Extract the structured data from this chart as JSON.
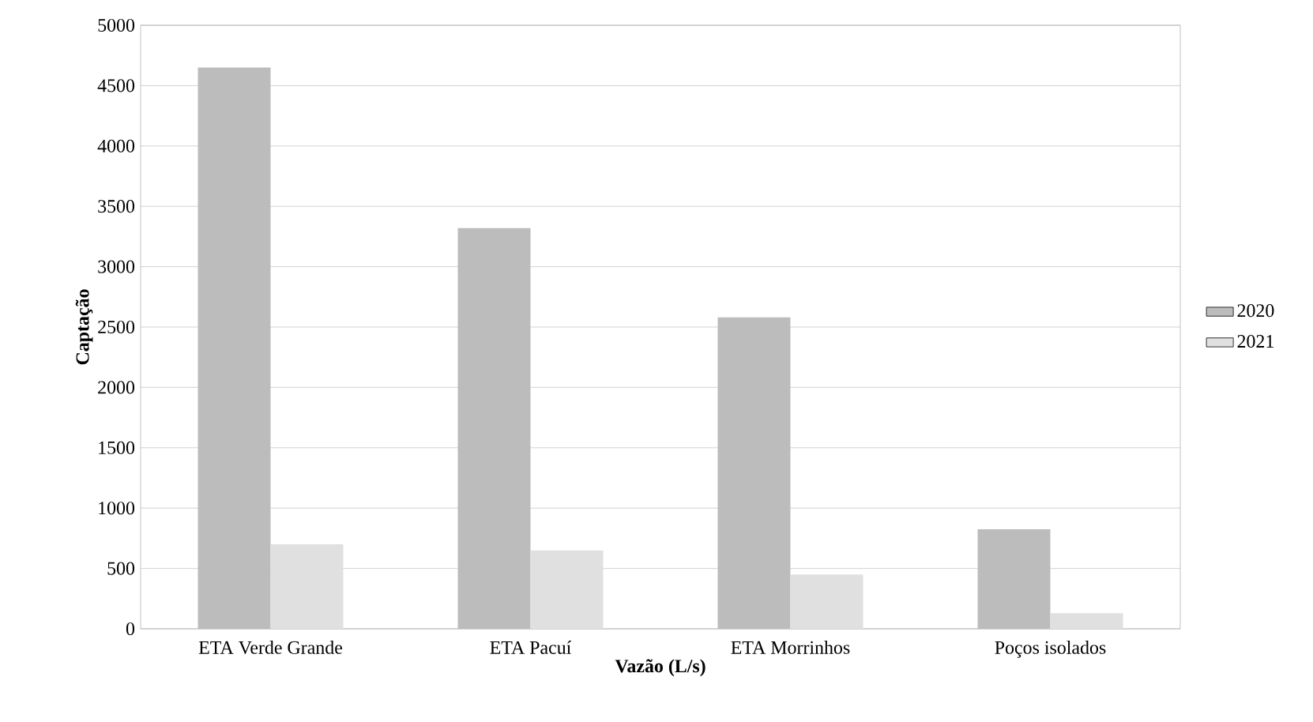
{
  "chart_data": {
    "type": "bar",
    "xlabel": "Vazão (L/s)",
    "ylabel": "Captação",
    "categories": [
      "ETA Verde Grande",
      "ETA Pacuí",
      "ETA Morrinhos",
      "Poços isolados"
    ],
    "series": [
      {
        "name": "2020",
        "color": "#bcbcbc",
        "values": [
          4650,
          3320,
          2580,
          825
        ]
      },
      {
        "name": "2021",
        "color": "#e0e0e0",
        "values": [
          700,
          650,
          450,
          130
        ]
      }
    ],
    "ylim": [
      0,
      5000
    ],
    "yticks": [
      0,
      500,
      1000,
      1500,
      2000,
      2500,
      3000,
      3500,
      4000,
      4500,
      5000
    ],
    "grid": "y",
    "legend": "right"
  }
}
